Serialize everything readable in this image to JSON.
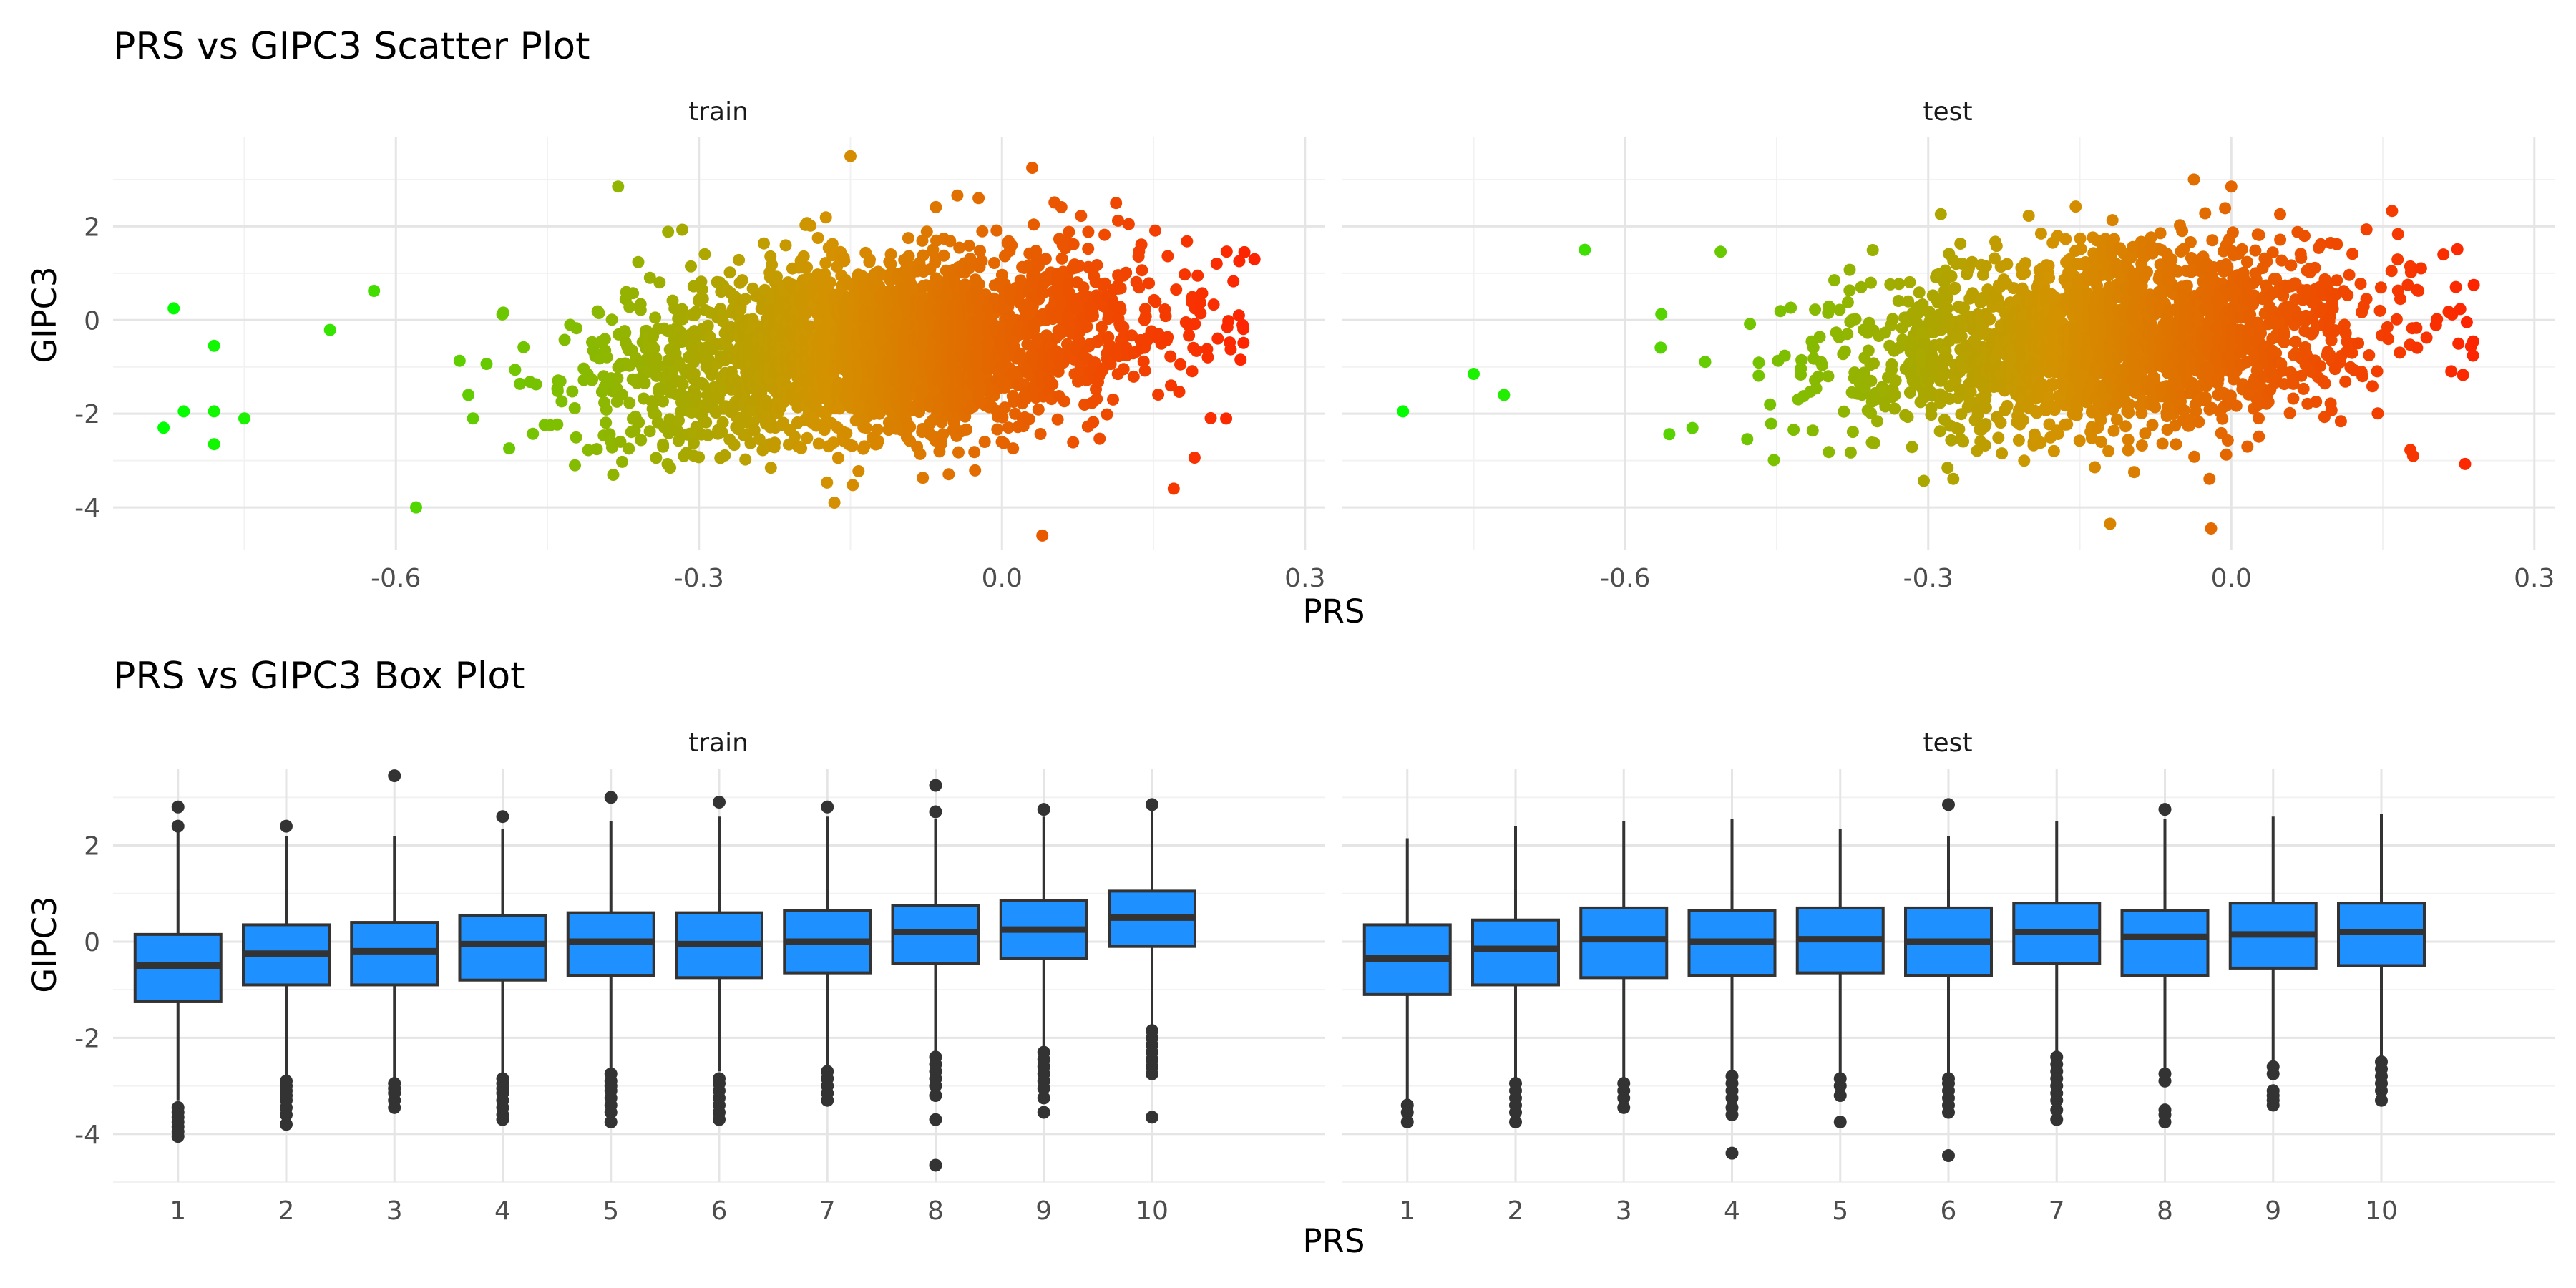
{
  "chart_data": [
    {
      "type": "scatter",
      "title": "PRS vs GIPC3 Scatter Plot",
      "xlabel": "PRS",
      "ylabel": "GIPC3",
      "facets": [
        "train",
        "test"
      ],
      "xlim": [
        -0.88,
        0.32
      ],
      "ylim": [
        -4.9,
        3.9
      ],
      "x_ticks": [
        -0.6,
        -0.3,
        0.0,
        0.3
      ],
      "y_ticks": [
        -4,
        -2,
        0,
        2
      ],
      "color_gradient": {
        "low": "#00ff00",
        "mid": "#d39300",
        "high": "#ff2000",
        "by": "PRS"
      },
      "grid": true,
      "legend": "none",
      "series": [
        {
          "facet": "train",
          "bulk": {
            "x_mean": -0.12,
            "x_sd": 0.13,
            "x_max": 0.24,
            "y_base": -0.35,
            "y_slope": 1.8,
            "y_sd": 0.95,
            "count": 2800
          },
          "extreme_points": [
            {
              "x": -0.82,
              "y": 0.25
            },
            {
              "x": -0.83,
              "y": -2.3
            },
            {
              "x": -0.81,
              "y": -1.95
            },
            {
              "x": -0.78,
              "y": -0.55
            },
            {
              "x": -0.78,
              "y": -1.95
            },
            {
              "x": -0.78,
              "y": -2.65
            },
            {
              "x": -0.75,
              "y": -2.1
            },
            {
              "x": -0.38,
              "y": 2.85
            },
            {
              "x": -0.15,
              "y": 3.5
            },
            {
              "x": 0.04,
              "y": -4.6
            },
            {
              "x": 0.25,
              "y": 1.3
            },
            {
              "x": 0.24,
              "y": 1.45
            },
            {
              "x": 0.17,
              "y": -3.6
            },
            {
              "x": -0.58,
              "y": -4.0
            },
            {
              "x": 0.03,
              "y": 3.25
            }
          ]
        },
        {
          "facet": "test",
          "bulk": {
            "x_mean": -0.12,
            "x_sd": 0.13,
            "x_max": 0.24,
            "y_base": -0.25,
            "y_slope": 1.5,
            "y_sd": 0.95,
            "count": 2100
          },
          "extreme_points": [
            {
              "x": -0.82,
              "y": -1.95
            },
            {
              "x": -0.75,
              "y": -1.15
            },
            {
              "x": -0.72,
              "y": -1.6
            },
            {
              "x": -0.64,
              "y": 1.5
            },
            {
              "x": -0.12,
              "y": -4.35
            },
            {
              "x": -0.02,
              "y": -4.45
            },
            {
              "x": 0.24,
              "y": 0.75
            },
            {
              "x": 0.21,
              "y": 1.4
            },
            {
              "x": 0.18,
              "y": -2.9
            },
            {
              "x": 0.0,
              "y": 2.85
            }
          ]
        }
      ]
    },
    {
      "type": "box",
      "title": "PRS vs GIPC3 Box Plot",
      "xlabel": "PRS",
      "ylabel": "GIPC3",
      "facets": [
        "train",
        "test"
      ],
      "categories": [
        "1",
        "2",
        "3",
        "4",
        "5",
        "6",
        "7",
        "8",
        "9",
        "10"
      ],
      "ylim": [
        -5.0,
        3.6
      ],
      "y_ticks": [
        -4,
        -2,
        0,
        2
      ],
      "fill": "#1e90ff",
      "grid": true,
      "legend": "none",
      "series": [
        {
          "facet": "train",
          "boxes": [
            {
              "cat": "1",
              "q1": -1.25,
              "median": -0.5,
              "q3": 0.15,
              "lower": -3.3,
              "upper": 2.3,
              "outliers": [
                2.8,
                2.4,
                -3.45,
                -3.55,
                -3.65,
                -3.75,
                -3.85,
                -3.95,
                -4.05
              ]
            },
            {
              "cat": "2",
              "q1": -0.9,
              "median": -0.25,
              "q3": 0.35,
              "lower": -2.8,
              "upper": 2.2,
              "outliers": [
                2.4,
                -2.9,
                -3.0,
                -3.1,
                -3.2,
                -3.3,
                -3.45,
                -3.6,
                -3.8
              ]
            },
            {
              "cat": "3",
              "q1": -0.9,
              "median": -0.2,
              "q3": 0.4,
              "lower": -2.85,
              "upper": 2.2,
              "outliers": [
                3.45,
                -2.95,
                -3.05,
                -3.15,
                -3.3,
                -3.45
              ]
            },
            {
              "cat": "4",
              "q1": -0.8,
              "median": -0.05,
              "q3": 0.55,
              "lower": -2.75,
              "upper": 2.35,
              "outliers": [
                2.6,
                -2.85,
                -2.95,
                -3.05,
                -3.15,
                -3.3,
                -3.45,
                -3.6,
                -3.7
              ]
            },
            {
              "cat": "5",
              "q1": -0.7,
              "median": 0.0,
              "q3": 0.6,
              "lower": -2.65,
              "upper": 2.5,
              "outliers": [
                3.0,
                -2.75,
                -2.9,
                -3.0,
                -3.1,
                -3.25,
                -3.4,
                -3.55,
                -3.75
              ]
            },
            {
              "cat": "6",
              "q1": -0.75,
              "median": -0.05,
              "q3": 0.6,
              "lower": -2.7,
              "upper": 2.6,
              "outliers": [
                2.9,
                -2.85,
                -2.95,
                -3.1,
                -3.25,
                -3.4,
                -3.55,
                -3.7
              ]
            },
            {
              "cat": "7",
              "q1": -0.65,
              "median": 0.0,
              "q3": 0.65,
              "lower": -2.6,
              "upper": 2.6,
              "outliers": [
                2.8,
                -2.7,
                -2.85,
                -3.0,
                -3.15,
                -3.3
              ]
            },
            {
              "cat": "8",
              "q1": -0.45,
              "median": 0.2,
              "q3": 0.75,
              "lower": -2.3,
              "upper": 2.55,
              "outliers": [
                3.25,
                2.7,
                -2.4,
                -2.55,
                -2.7,
                -2.85,
                -3.0,
                -3.2,
                -3.7,
                -4.65
              ]
            },
            {
              "cat": "9",
              "q1": -0.35,
              "median": 0.25,
              "q3": 0.85,
              "lower": -2.2,
              "upper": 2.6,
              "outliers": [
                2.75,
                -2.3,
                -2.45,
                -2.6,
                -2.75,
                -2.9,
                -3.05,
                -3.25,
                -3.55
              ]
            },
            {
              "cat": "10",
              "q1": -0.1,
              "median": 0.5,
              "q3": 1.05,
              "lower": -1.75,
              "upper": 2.75,
              "outliers": [
                2.85,
                -1.85,
                -2.0,
                -2.15,
                -2.3,
                -2.45,
                -2.6,
                -2.75,
                -3.65
              ]
            }
          ]
        },
        {
          "facet": "test",
          "boxes": [
            {
              "cat": "1",
              "q1": -1.1,
              "median": -0.35,
              "q3": 0.35,
              "lower": -3.3,
              "upper": 2.15,
              "outliers": [
                -3.4,
                -3.55,
                -3.75
              ]
            },
            {
              "cat": "2",
              "q1": -0.9,
              "median": -0.15,
              "q3": 0.45,
              "lower": -2.85,
              "upper": 2.4,
              "outliers": [
                -2.95,
                -3.1,
                -3.25,
                -3.4,
                -3.55,
                -3.75
              ]
            },
            {
              "cat": "3",
              "q1": -0.75,
              "median": 0.05,
              "q3": 0.7,
              "lower": -2.85,
              "upper": 2.5,
              "outliers": [
                -2.95,
                -3.1,
                -3.25,
                -3.45
              ]
            },
            {
              "cat": "4",
              "q1": -0.7,
              "median": 0.0,
              "q3": 0.65,
              "lower": -2.7,
              "upper": 2.55,
              "outliers": [
                -2.8,
                -2.95,
                -3.1,
                -3.25,
                -3.45,
                -3.6,
                -4.4
              ]
            },
            {
              "cat": "5",
              "q1": -0.65,
              "median": 0.05,
              "q3": 0.7,
              "lower": -2.75,
              "upper": 2.35,
              "outliers": [
                -2.85,
                -3.0,
                -3.2,
                -3.75
              ]
            },
            {
              "cat": "6",
              "q1": -0.7,
              "median": 0.0,
              "q3": 0.7,
              "lower": -2.75,
              "upper": 2.2,
              "outliers": [
                2.85,
                -2.85,
                -2.95,
                -3.1,
                -3.25,
                -3.4,
                -3.55,
                -4.45
              ]
            },
            {
              "cat": "7",
              "q1": -0.45,
              "median": 0.2,
              "q3": 0.8,
              "lower": -2.3,
              "upper": 2.5,
              "outliers": [
                -2.4,
                -2.55,
                -2.7,
                -2.85,
                -3.0,
                -3.15,
                -3.3,
                -3.5,
                -3.7
              ]
            },
            {
              "cat": "8",
              "q1": -0.7,
              "median": 0.1,
              "q3": 0.65,
              "lower": -2.65,
              "upper": 2.55,
              "outliers": [
                2.75,
                -2.75,
                -2.9,
                -3.5,
                -3.6,
                -3.75
              ]
            },
            {
              "cat": "9",
              "q1": -0.55,
              "median": 0.15,
              "q3": 0.8,
              "lower": -2.5,
              "upper": 2.6,
              "outliers": [
                -2.6,
                -2.75,
                -3.1,
                -3.2,
                -3.3,
                -3.4
              ]
            },
            {
              "cat": "10",
              "q1": -0.5,
              "median": 0.2,
              "q3": 0.8,
              "lower": -2.4,
              "upper": 2.65,
              "outliers": [
                -2.5,
                -2.65,
                -2.8,
                -2.95,
                -3.1,
                -3.3
              ]
            }
          ]
        }
      ]
    }
  ]
}
